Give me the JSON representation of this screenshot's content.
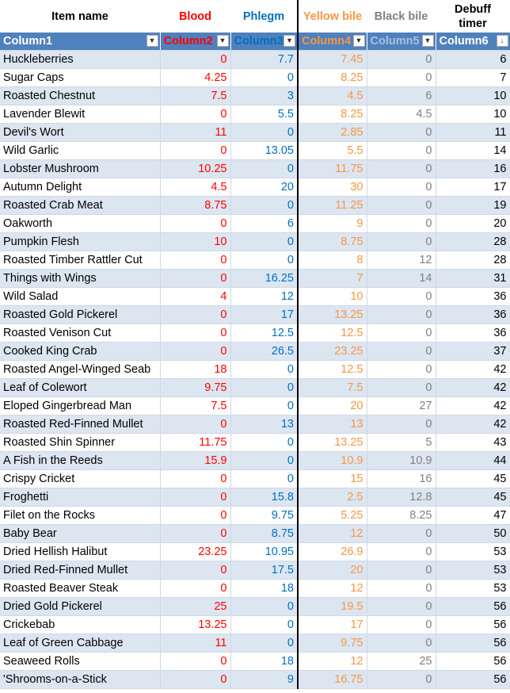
{
  "captions": {
    "item": "Item name",
    "blood": "Blood",
    "phlegm": "Phlegm",
    "yellow": "Yellow bile",
    "black": "Black bile",
    "debuff_line1": "Debuff",
    "debuff_line2": "timer"
  },
  "headers": [
    "Column1",
    "Column2",
    "Column3",
    "Column4",
    "Column5",
    "Column6"
  ],
  "colors": {
    "blood": "#ff0000",
    "phlegm": "#0070c0",
    "yellow": "#f79646",
    "black": "#808080",
    "header_bg": "#4f81bd",
    "band": "#dce6f1"
  },
  "rows": [
    {
      "name": "Huckleberries",
      "b": "0",
      "p": "7.7",
      "y": "7.45",
      "k": "0",
      "d": "6"
    },
    {
      "name": "Sugar Caps",
      "b": "4.25",
      "p": "0",
      "y": "8.25",
      "k": "0",
      "d": "7"
    },
    {
      "name": "Roasted Chestnut",
      "b": "7.5",
      "p": "3",
      "y": "4.5",
      "k": "6",
      "d": "10"
    },
    {
      "name": "Lavender Blewit",
      "b": "0",
      "p": "5.5",
      "y": "8.25",
      "k": "4.5",
      "d": "10"
    },
    {
      "name": "Devil's Wort",
      "b": "11",
      "p": "0",
      "y": "2.85",
      "k": "0",
      "d": "11"
    },
    {
      "name": "Wild Garlic",
      "b": "0",
      "p": "13.05",
      "y": "5.5",
      "k": "0",
      "d": "14"
    },
    {
      "name": "Lobster Mushroom",
      "b": "10.25",
      "p": "0",
      "y": "11.75",
      "k": "0",
      "d": "16"
    },
    {
      "name": "Autumn Delight",
      "b": "4.5",
      "p": "20",
      "y": "30",
      "k": "0",
      "d": "17"
    },
    {
      "name": "Roasted Crab Meat",
      "b": "8.75",
      "p": "0",
      "y": "11.25",
      "k": "0",
      "d": "19"
    },
    {
      "name": "Oakworth",
      "b": "0",
      "p": "6",
      "y": "9",
      "k": "0",
      "d": "20"
    },
    {
      "name": "Pumpkin Flesh",
      "b": "10",
      "p": "0",
      "y": "8.75",
      "k": "0",
      "d": "28"
    },
    {
      "name": "Roasted Timber Rattler Cut",
      "b": "0",
      "p": "0",
      "y": "8",
      "k": "12",
      "d": "28"
    },
    {
      "name": "Things with Wings",
      "b": "0",
      "p": "16.25",
      "y": "7",
      "k": "14",
      "d": "31"
    },
    {
      "name": "Wild Salad",
      "b": "4",
      "p": "12",
      "y": "10",
      "k": "0",
      "d": "36"
    },
    {
      "name": "Roasted Gold Pickerel",
      "b": "0",
      "p": "17",
      "y": "13.25",
      "k": "0",
      "d": "36"
    },
    {
      "name": "Roasted Venison Cut",
      "b": "0",
      "p": "12.5",
      "y": "12.5",
      "k": "0",
      "d": "36"
    },
    {
      "name": "Cooked King Crab",
      "b": "0",
      "p": "26.5",
      "y": "23.25",
      "k": "0",
      "d": "37"
    },
    {
      "name": "Roasted Angel-Winged Seab",
      "b": "18",
      "p": "0",
      "y": "12.5",
      "k": "0",
      "d": "42"
    },
    {
      "name": "Leaf of Colewort",
      "b": "9.75",
      "p": "0",
      "y": "7.5",
      "k": "0",
      "d": "42"
    },
    {
      "name": "Eloped Gingerbread Man",
      "b": "7.5",
      "p": "0",
      "y": "20",
      "k": "27",
      "d": "42"
    },
    {
      "name": "Roasted Red-Finned Mullet",
      "b": "0",
      "p": "13",
      "y": "13",
      "k": "0",
      "d": "42"
    },
    {
      "name": "Roasted Shin Spinner",
      "b": "11.75",
      "p": "0",
      "y": "13.25",
      "k": "5",
      "d": "43"
    },
    {
      "name": "A Fish in the Reeds",
      "b": "15.9",
      "p": "0",
      "y": "10.9",
      "k": "10.9",
      "d": "44"
    },
    {
      "name": "Crispy Cricket",
      "b": "0",
      "p": "0",
      "y": "15",
      "k": "16",
      "d": "45"
    },
    {
      "name": "Froghetti",
      "b": "0",
      "p": "15.8",
      "y": "2.5",
      "k": "12.8",
      "d": "45"
    },
    {
      "name": "Filet on the Rocks",
      "b": "0",
      "p": "9.75",
      "y": "5.25",
      "k": "8.25",
      "d": "47"
    },
    {
      "name": "Baby Bear",
      "b": "0",
      "p": "8.75",
      "y": "12",
      "k": "0",
      "d": "50"
    },
    {
      "name": "Dried Hellish Halibut",
      "b": "23.25",
      "p": "10.95",
      "y": "26.9",
      "k": "0",
      "d": "53"
    },
    {
      "name": "Dried Red-Finned Mullet",
      "b": "0",
      "p": "17.5",
      "y": "20",
      "k": "0",
      "d": "53"
    },
    {
      "name": "Roasted Beaver Steak",
      "b": "0",
      "p": "18",
      "y": "12",
      "k": "0",
      "d": "53"
    },
    {
      "name": "Dried Gold Pickerel",
      "b": "25",
      "p": "0",
      "y": "19.5",
      "k": "0",
      "d": "56"
    },
    {
      "name": "Crickebab",
      "b": "13.25",
      "p": "0",
      "y": "17",
      "k": "0",
      "d": "56"
    },
    {
      "name": "Leaf of Green Cabbage",
      "b": "11",
      "p": "0",
      "y": "9.75",
      "k": "0",
      "d": "56"
    },
    {
      "name": "Seaweed Rolls",
      "b": "0",
      "p": "18",
      "y": "12",
      "k": "25",
      "d": "56"
    },
    {
      "name": "'Shrooms-on-a-Stick",
      "b": "0",
      "p": "9",
      "y": "16.75",
      "k": "0",
      "d": "56"
    }
  ]
}
